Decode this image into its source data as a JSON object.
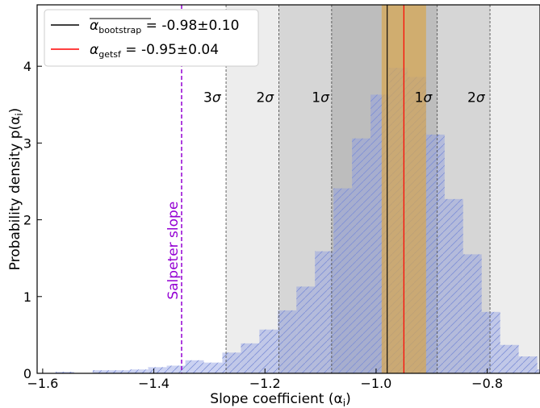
{
  "chart_data": {
    "type": "bar",
    "xlabel": "Slope coefficient (α",
    "xlabel_sub": "i",
    "ylabel": "Probability density p(α",
    "ylabel_sub": "i",
    "xlim": [
      -1.61,
      -0.705
    ],
    "ylim": [
      0,
      4.8
    ],
    "x_ticks": [
      -1.6,
      -1.4,
      -1.2,
      -1.0,
      -0.8
    ],
    "x_tick_labels": [
      "−1.6",
      "−1.4",
      "−1.2",
      "−1.0",
      "−0.8"
    ],
    "y_ticks": [
      0,
      1,
      2,
      3,
      4
    ],
    "y_tick_labels": [
      "0",
      "1",
      "2",
      "3",
      "4"
    ],
    "histogram": {
      "bin_width": 0.0333,
      "bin_starts": [
        -1.61,
        -1.5767,
        -1.5433,
        -1.51,
        -1.4767,
        -1.4433,
        -1.41,
        -1.3767,
        -1.3433,
        -1.31,
        -1.2767,
        -1.2433,
        -1.21,
        -1.1767,
        -1.1433,
        -1.11,
        -1.0767,
        -1.0433,
        -1.01,
        -0.9767,
        -0.9433,
        -0.91,
        -0.8767,
        -0.8433,
        -0.81,
        -0.7767,
        -0.7433,
        -0.71
      ],
      "values": [
        0.0,
        0.02,
        0.0,
        0.04,
        0.04,
        0.05,
        0.08,
        0.1,
        0.17,
        0.14,
        0.27,
        0.39,
        0.57,
        0.82,
        1.13,
        1.59,
        2.41,
        3.06,
        3.63,
        3.98,
        3.86,
        3.11,
        2.27,
        1.55,
        0.8,
        0.37,
        0.22,
        0.05
      ],
      "color": "#8b9be3"
    },
    "bootstrap": {
      "mean": -0.98,
      "sigma": 0.1,
      "color": "#000000"
    },
    "getsf": {
      "value": -0.95,
      "error": 0.04,
      "color": "#ff0000",
      "band_color": "#d9a64f"
    },
    "sigma_bands": [
      {
        "lo": -1.08,
        "hi": -0.89,
        "color": "#bdbdbd"
      },
      {
        "lo": -1.175,
        "hi": -0.795,
        "color": "#d6d6d6"
      },
      {
        "lo": -1.27,
        "hi": -0.705,
        "color": "#ededed"
      }
    ],
    "sigma_lines": [
      -1.27,
      -1.175,
      -1.08,
      -0.89,
      -0.795
    ],
    "sigma_labels": [
      {
        "text": "3σ",
        "x": -1.295
      },
      {
        "text": "2σ",
        "x": -1.2
      },
      {
        "text": "1σ",
        "x": -1.1
      },
      {
        "text": "1σ",
        "x": -0.915
      },
      {
        "text": "2σ",
        "x": -0.82
      }
    ],
    "sigma_label_y": 3.6,
    "salpeter": {
      "x": -1.35,
      "label": "Salpeter slope",
      "color": "#9400d3",
      "label_y": 1.6
    },
    "legend": {
      "position": "top-left",
      "entries": [
        {
          "label": "α",
          "sub": "bootstrap",
          "overline": true,
          "value": " = -0.98±0.10",
          "color": "#000000"
        },
        {
          "label": "α",
          "sub": "getsf",
          "overline": false,
          "value": " = -0.95±0.04",
          "color": "#ff0000"
        }
      ]
    }
  }
}
